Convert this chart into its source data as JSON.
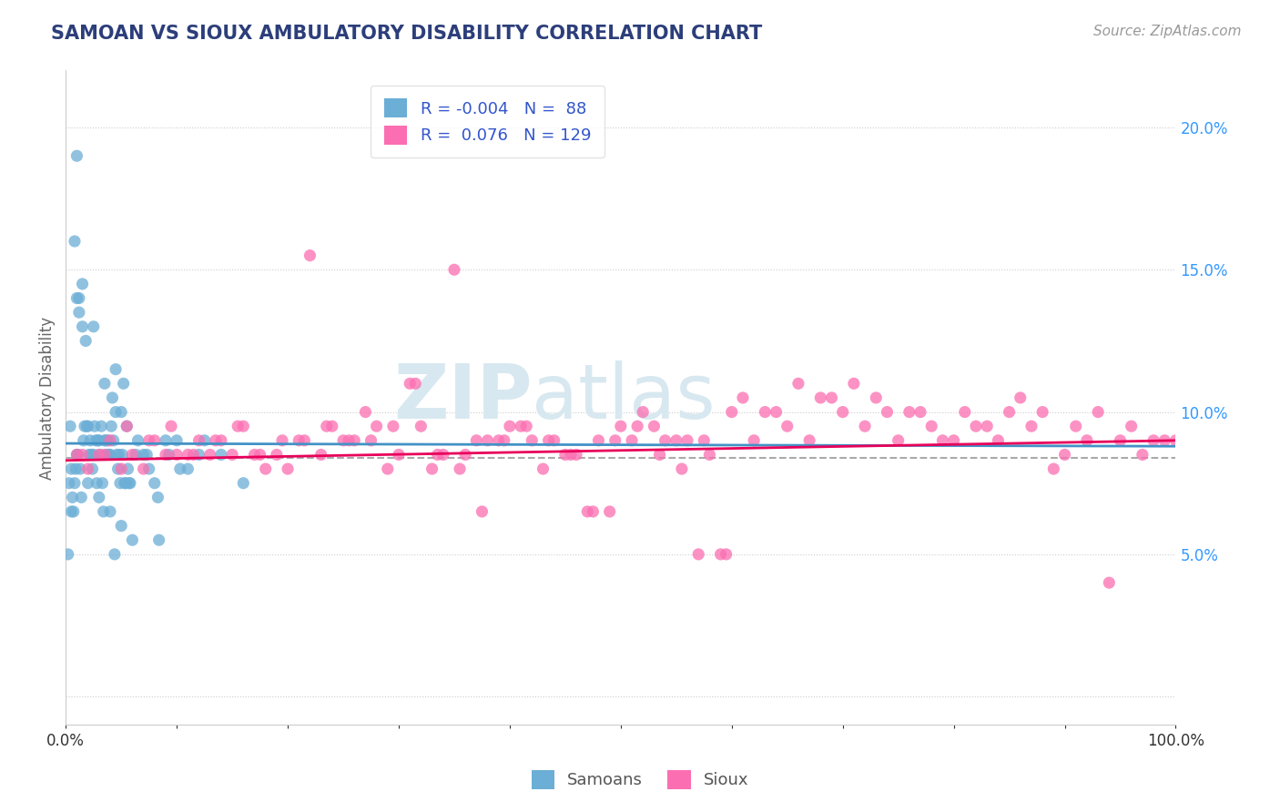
{
  "title": "SAMOAN VS SIOUX AMBULATORY DISABILITY CORRELATION CHART",
  "source": "Source: ZipAtlas.com",
  "ylabel": "Ambulatory Disability",
  "xlim": [
    0.0,
    100.0
  ],
  "ylim": [
    -1.0,
    22.0
  ],
  "ytick_vals": [
    0.0,
    5.0,
    10.0,
    15.0,
    20.0
  ],
  "ytick_labels": [
    "",
    "5.0%",
    "10.0%",
    "15.0%",
    "20.0%"
  ],
  "xtick_vals": [
    0.0,
    10.0,
    20.0,
    30.0,
    40.0,
    50.0,
    60.0,
    70.0,
    80.0,
    90.0,
    100.0
  ],
  "xtick_labels": [
    "0.0%",
    "",
    "",
    "",
    "",
    "",
    "",
    "",
    "",
    "",
    "100.0%"
  ],
  "color_samoan": "#6baed6",
  "color_sioux": "#fb6eb1",
  "color_line_samoan": "#4292c6",
  "color_line_sioux": "#e8005a",
  "color_dashed": "#aaaaaa",
  "background_color": "#ffffff",
  "watermark_zip": "ZIP",
  "watermark_atlas": "atlas",
  "title_color": "#2c3e7a",
  "ytick_color": "#3399ff",
  "xtick_color": "#333333",
  "samoans_x": [
    0.2,
    0.3,
    0.4,
    0.5,
    0.5,
    0.6,
    0.7,
    0.8,
    0.8,
    0.9,
    1.0,
    1.0,
    1.0,
    1.1,
    1.2,
    1.2,
    1.3,
    1.4,
    1.5,
    1.5,
    1.6,
    1.7,
    1.8,
    1.9,
    2.0,
    2.0,
    2.1,
    2.2,
    2.3,
    2.4,
    2.5,
    2.5,
    2.6,
    2.7,
    2.8,
    2.9,
    3.0,
    3.0,
    3.1,
    3.2,
    3.3,
    3.4,
    3.5,
    3.5,
    3.6,
    3.7,
    3.8,
    3.9,
    4.0,
    4.0,
    4.1,
    4.2,
    4.3,
    4.4,
    4.5,
    4.5,
    4.6,
    4.7,
    4.8,
    4.9,
    5.0,
    5.0,
    5.1,
    5.2,
    5.3,
    5.4,
    5.5,
    5.6,
    5.7,
    5.8,
    6.0,
    6.3,
    6.5,
    7.0,
    7.3,
    7.5,
    8.0,
    8.3,
    8.4,
    9.0,
    9.3,
    10.0,
    10.3,
    11.0,
    12.0,
    12.5,
    14.0,
    16.0
  ],
  "samoans_y": [
    5.0,
    7.5,
    9.5,
    8.0,
    6.5,
    7.0,
    6.5,
    7.5,
    16.0,
    8.0,
    14.0,
    19.0,
    8.5,
    8.5,
    13.5,
    14.0,
    8.0,
    7.0,
    13.0,
    14.5,
    9.0,
    9.5,
    12.5,
    9.5,
    9.5,
    7.5,
    8.5,
    9.0,
    8.5,
    8.0,
    8.5,
    13.0,
    9.5,
    9.0,
    7.5,
    9.0,
    7.0,
    9.0,
    8.5,
    9.5,
    7.5,
    6.5,
    9.0,
    11.0,
    9.0,
    8.5,
    9.0,
    8.5,
    8.5,
    6.5,
    9.5,
    10.5,
    9.0,
    5.0,
    10.0,
    11.5,
    8.5,
    8.0,
    8.5,
    7.5,
    6.0,
    10.0,
    8.5,
    11.0,
    7.5,
    7.5,
    9.5,
    8.0,
    7.5,
    7.5,
    5.5,
    8.5,
    9.0,
    8.5,
    8.5,
    8.0,
    7.5,
    7.0,
    5.5,
    9.0,
    8.5,
    9.0,
    8.0,
    8.0,
    8.5,
    9.0,
    8.5,
    7.5
  ],
  "sioux_x": [
    1.0,
    2.0,
    3.0,
    4.0,
    5.0,
    6.0,
    7.0,
    8.0,
    9.0,
    10.0,
    11.0,
    12.0,
    13.0,
    14.0,
    15.0,
    16.0,
    17.0,
    18.0,
    19.0,
    20.0,
    21.0,
    22.0,
    23.0,
    24.0,
    25.0,
    26.0,
    27.0,
    28.0,
    29.0,
    30.0,
    31.0,
    32.0,
    33.0,
    34.0,
    35.0,
    36.0,
    37.0,
    38.0,
    39.0,
    40.0,
    41.0,
    42.0,
    43.0,
    44.0,
    45.0,
    46.0,
    47.0,
    48.0,
    49.0,
    50.0,
    51.0,
    52.0,
    53.0,
    54.0,
    55.0,
    56.0,
    57.0,
    58.0,
    59.0,
    60.0,
    61.0,
    62.0,
    63.0,
    64.0,
    65.0,
    66.0,
    67.0,
    68.0,
    69.0,
    70.0,
    71.0,
    72.0,
    73.0,
    74.0,
    75.0,
    76.0,
    77.0,
    78.0,
    79.0,
    80.0,
    81.0,
    82.0,
    83.0,
    84.0,
    85.0,
    86.0,
    87.0,
    88.0,
    89.0,
    90.0,
    91.0,
    92.0,
    93.0,
    94.0,
    95.0,
    96.0,
    97.0,
    98.0,
    99.0,
    100.0,
    1.5,
    3.5,
    5.5,
    7.5,
    9.5,
    11.5,
    13.5,
    15.5,
    17.5,
    19.5,
    21.5,
    23.5,
    25.5,
    27.5,
    29.5,
    31.5,
    33.5,
    35.5,
    37.5,
    39.5,
    41.5,
    43.5,
    45.5,
    47.5,
    49.5,
    51.5,
    53.5,
    55.5,
    57.5,
    59.5
  ],
  "sioux_y": [
    8.5,
    8.0,
    8.5,
    9.0,
    8.0,
    8.5,
    8.0,
    9.0,
    8.5,
    8.5,
    8.5,
    9.0,
    8.5,
    9.0,
    8.5,
    9.5,
    8.5,
    8.0,
    8.5,
    8.0,
    9.0,
    15.5,
    8.5,
    9.5,
    9.0,
    9.0,
    10.0,
    9.5,
    8.0,
    8.5,
    11.0,
    9.5,
    8.0,
    8.5,
    15.0,
    8.5,
    9.0,
    9.0,
    9.0,
    9.5,
    9.5,
    9.0,
    8.0,
    9.0,
    8.5,
    8.5,
    6.5,
    9.0,
    6.5,
    9.5,
    9.0,
    10.0,
    9.5,
    9.0,
    9.0,
    9.0,
    5.0,
    8.5,
    5.0,
    10.0,
    10.5,
    9.0,
    10.0,
    10.0,
    9.5,
    11.0,
    9.0,
    10.5,
    10.5,
    10.0,
    11.0,
    9.5,
    10.5,
    10.0,
    9.0,
    10.0,
    10.0,
    9.5,
    9.0,
    9.0,
    10.0,
    9.5,
    9.5,
    9.0,
    10.0,
    10.5,
    9.5,
    10.0,
    8.0,
    8.5,
    9.5,
    9.0,
    10.0,
    4.0,
    9.0,
    9.5,
    8.5,
    9.0,
    9.0,
    9.0,
    8.5,
    8.5,
    9.5,
    9.0,
    9.5,
    8.5,
    9.0,
    9.5,
    8.5,
    9.0,
    9.0,
    9.5,
    9.0,
    9.0,
    9.5,
    11.0,
    8.5,
    8.0,
    6.5,
    9.0,
    9.5,
    9.0,
    8.5,
    6.5,
    9.0,
    9.5,
    8.5,
    8.0,
    9.0,
    5.0
  ]
}
